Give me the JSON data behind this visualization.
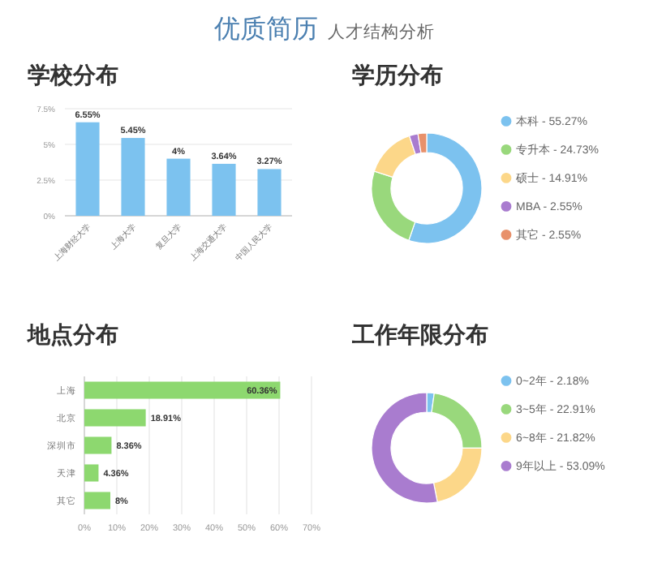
{
  "chart_data": [
    {
      "type": "other",
      "title": "优质简历",
      "subtitle": "人才结构分析"
    },
    {
      "type": "bar",
      "title": "学校分布",
      "categories": [
        "上海财经大学",
        "上海大学",
        "复旦大学",
        "上海交通大学",
        "中国人民大学"
      ],
      "values": [
        6.55,
        5.45,
        4,
        3.64,
        3.27
      ],
      "value_labels": [
        "6.55%",
        "5.45%",
        "4%",
        "3.64%",
        "3.27%"
      ],
      "color": "#7cc2ef",
      "ylim": [
        0,
        7.5
      ],
      "yticks": [
        {
          "value": 0,
          "label": "0%"
        },
        {
          "value": 2.5,
          "label": "2.5%"
        },
        {
          "value": 5,
          "label": "5%"
        },
        {
          "value": 7.5,
          "label": "7.5%"
        }
      ],
      "grid": "y"
    },
    {
      "type": "donut",
      "title": "学历分布",
      "categories": [
        "本科 - 55.27%",
        "专升本 - 24.73%",
        "硕士 - 14.91%",
        "MBA - 2.55%",
        "其它 - 2.55%"
      ],
      "values": [
        55.27,
        24.73,
        14.91,
        2.55,
        2.55
      ],
      "colors": [
        "#7cc2ef",
        "#99d87c",
        "#fcd789",
        "#a97ccf",
        "#e8916b"
      ],
      "legend": "right"
    },
    {
      "type": "bar",
      "orientation": "horizontal",
      "title": "地点分布",
      "categories": [
        "上海",
        "北京",
        "深圳市",
        "天津",
        "其它"
      ],
      "values": [
        60.36,
        18.91,
        8.36,
        4.36,
        8
      ],
      "value_labels": [
        "60.36%",
        "18.91%",
        "8.36%",
        "4.36%",
        "8%"
      ],
      "color": "#8dd86f",
      "xlim": [
        0,
        70
      ],
      "xticks": [
        {
          "value": 0,
          "label": "0%"
        },
        {
          "value": 10,
          "label": "10%"
        },
        {
          "value": 20,
          "label": "20%"
        },
        {
          "value": 30,
          "label": "30%"
        },
        {
          "value": 40,
          "label": "40%"
        },
        {
          "value": 50,
          "label": "50%"
        },
        {
          "value": 60,
          "label": "60%"
        },
        {
          "value": 70,
          "label": "70%"
        }
      ],
      "grid": "x"
    },
    {
      "type": "donut",
      "title": "工作年限分布",
      "categories": [
        "0~2年 - 2.18%",
        "3~5年 - 22.91%",
        "6~8年 - 21.82%",
        "9年以上 - 53.09%"
      ],
      "values": [
        2.18,
        22.91,
        21.82,
        53.09
      ],
      "colors": [
        "#7cc2ef",
        "#99d87c",
        "#fcd789",
        "#a97ccf"
      ],
      "legend": "right"
    }
  ]
}
